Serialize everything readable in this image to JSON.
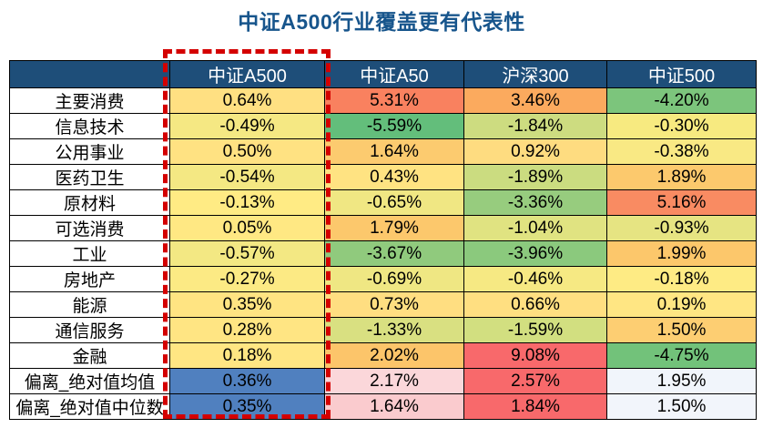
{
  "page": {
    "title": "中证A500行业覆盖更有代表性",
    "title_color": "#17558C"
  },
  "table": {
    "header_bg": "#1E4E79",
    "header_text_color": "#FFFFFF",
    "columns": [
      {
        "label": ""
      },
      {
        "label": "中证A500"
      },
      {
        "label": "中证A50"
      },
      {
        "label": "沪深300"
      },
      {
        "label": "中证500"
      }
    ],
    "rows": [
      {
        "label": "主要消费",
        "cells": [
          {
            "text": "0.64%",
            "bg": "#FFE082"
          },
          {
            "text": "5.31%",
            "bg": "#F9815F"
          },
          {
            "text": "3.46%",
            "bg": "#FBAA5E"
          },
          {
            "text": "-4.20%",
            "bg": "#7CC57C"
          }
        ]
      },
      {
        "label": "信息技术",
        "cells": [
          {
            "text": "-0.49%",
            "bg": "#F5E883"
          },
          {
            "text": "-5.59%",
            "bg": "#63BE7B"
          },
          {
            "text": "-1.84%",
            "bg": "#CDDC80"
          },
          {
            "text": "-0.30%",
            "bg": "#F7EA80"
          }
        ]
      },
      {
        "label": "公用事业",
        "cells": [
          {
            "text": "0.50%",
            "bg": "#FFE282"
          },
          {
            "text": "1.64%",
            "bg": "#FCCB6F"
          },
          {
            "text": "0.92%",
            "bg": "#FEDC80"
          },
          {
            "text": "-0.38%",
            "bg": "#F9E984"
          }
        ]
      },
      {
        "label": "医药卫生",
        "cells": [
          {
            "text": "-0.54%",
            "bg": "#F4E883"
          },
          {
            "text": "0.43%",
            "bg": "#FFE382"
          },
          {
            "text": "-1.89%",
            "bg": "#CBDC80"
          },
          {
            "text": "1.89%",
            "bg": "#FCC96D"
          }
        ]
      },
      {
        "label": "原材料",
        "cells": [
          {
            "text": "-0.13%",
            "bg": "#FFEB84"
          },
          {
            "text": "-0.65%",
            "bg": "#F0E783"
          },
          {
            "text": "-3.36%",
            "bg": "#97CC7E"
          },
          {
            "text": "5.16%",
            "bg": "#F98B62"
          }
        ]
      },
      {
        "label": "可选消费",
        "cells": [
          {
            "text": "0.05%",
            "bg": "#FFE883"
          },
          {
            "text": "1.79%",
            "bg": "#FCC86C"
          },
          {
            "text": "-1.04%",
            "bg": "#E0E381"
          },
          {
            "text": "-0.93%",
            "bg": "#E6E482"
          }
        ]
      },
      {
        "label": "工业",
        "cells": [
          {
            "text": "-0.57%",
            "bg": "#F3E883"
          },
          {
            "text": "-3.67%",
            "bg": "#90CA7D"
          },
          {
            "text": "-3.96%",
            "bg": "#8BC97D"
          },
          {
            "text": "1.99%",
            "bg": "#FCC76B"
          }
        ]
      },
      {
        "label": "房地产",
        "cells": [
          {
            "text": "-0.27%",
            "bg": "#FCEA84"
          },
          {
            "text": "-0.69%",
            "bg": "#EFE783"
          },
          {
            "text": "-0.46%",
            "bg": "#F6E983"
          },
          {
            "text": "-0.18%",
            "bg": "#FEEB84"
          }
        ]
      },
      {
        "label": "能源",
        "cells": [
          {
            "text": "0.35%",
            "bg": "#FFE482"
          },
          {
            "text": "0.73%",
            "bg": "#FFDE81"
          },
          {
            "text": "0.66%",
            "bg": "#FFDF81"
          },
          {
            "text": "0.19%",
            "bg": "#FFE683"
          }
        ]
      },
      {
        "label": "通信服务",
        "cells": [
          {
            "text": "0.28%",
            "bg": "#FFE583"
          },
          {
            "text": "-1.33%",
            "bg": "#D9E081"
          },
          {
            "text": "-1.59%",
            "bg": "#D2DF80"
          },
          {
            "text": "1.50%",
            "bg": "#FDCE72"
          }
        ]
      },
      {
        "label": "金融",
        "cells": [
          {
            "text": "0.18%",
            "bg": "#FFE683"
          },
          {
            "text": "2.02%",
            "bg": "#FCC56A"
          },
          {
            "text": "9.08%",
            "bg": "#F8696B"
          },
          {
            "text": "-4.75%",
            "bg": "#72C27A"
          }
        ]
      },
      {
        "label": "偏离_绝对值均值",
        "cells": [
          {
            "text": "0.36%",
            "bg": "#5080BF"
          },
          {
            "text": "2.17%",
            "bg": "#FBD7DA"
          },
          {
            "text": "2.57%",
            "bg": "#F8696B"
          },
          {
            "text": "1.95%",
            "bg": "#F1F5FB"
          }
        ]
      },
      {
        "label": "偏离_绝对值中位数",
        "cells": [
          {
            "text": "0.35%",
            "bg": "#5080BF"
          },
          {
            "text": "1.64%",
            "bg": "#FACBCE"
          },
          {
            "text": "1.84%",
            "bg": "#F8696B"
          },
          {
            "text": "1.50%",
            "bg": "#F2F5FB"
          }
        ]
      }
    ]
  },
  "highlight_box": {
    "highlighted_column": "中证A500",
    "color": "#D40000"
  },
  "chart_data": {
    "type": "heatmap",
    "title": "中证A500行业覆盖更有代表性",
    "unit": "%",
    "categories": [
      "主要消费",
      "信息技术",
      "公用事业",
      "医药卫生",
      "原材料",
      "可选消费",
      "工业",
      "房地产",
      "能源",
      "通信服务",
      "金融",
      "偏离_绝对值均值",
      "偏离_绝对值中位数"
    ],
    "series": [
      {
        "name": "中证A500",
        "values": [
          0.64,
          -0.49,
          0.5,
          -0.54,
          -0.13,
          0.05,
          -0.57,
          -0.27,
          0.35,
          0.28,
          0.18,
          0.36,
          0.35
        ]
      },
      {
        "name": "中证A50",
        "values": [
          5.31,
          -5.59,
          1.64,
          0.43,
          -0.65,
          1.79,
          -3.67,
          -0.69,
          0.73,
          -1.33,
          2.02,
          2.17,
          1.64
        ]
      },
      {
        "name": "沪深300",
        "values": [
          3.46,
          -1.84,
          0.92,
          -1.89,
          -3.36,
          -1.04,
          -3.96,
          -0.46,
          0.66,
          -1.59,
          9.08,
          2.57,
          1.84
        ]
      },
      {
        "name": "中证500",
        "values": [
          -4.2,
          -0.3,
          -0.38,
          1.89,
          5.16,
          -0.93,
          1.99,
          -0.18,
          0.19,
          1.5,
          -4.75,
          1.95,
          1.5
        ]
      }
    ],
    "color_scale": {
      "industry_rows": "green-yellow-red",
      "deviation_rows": "blue-white-red"
    },
    "legend_position": "none",
    "grid": true
  }
}
